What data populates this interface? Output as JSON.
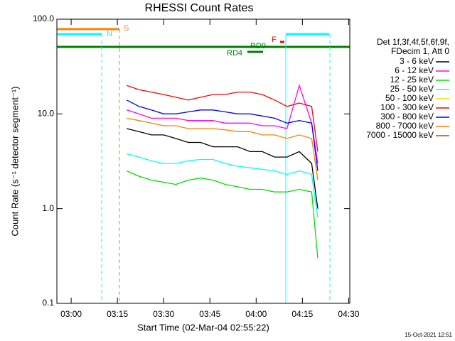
{
  "chart_data": {
    "type": "line",
    "title": "RHESSI Count Rates",
    "x_label": "Start Time (02-Mar-04 02:55:22)",
    "y_label": "Count Rate (s⁻¹ detector segment⁻¹)",
    "log_y": true,
    "xlim": [
      "02:55:22",
      "04:30:22"
    ],
    "xticks": [
      "03:00",
      "03:15",
      "03:30",
      "03:45",
      "04:00",
      "04:15",
      "04:30"
    ],
    "ylim": [
      0.1,
      100
    ],
    "yticks": [
      {
        "value": 100,
        "label": "100.0"
      },
      {
        "value": 10,
        "label": "10.0"
      },
      {
        "value": 1,
        "label": "1.0"
      },
      {
        "value": 0.1,
        "label": "0.1"
      }
    ],
    "x": [
      "03:18",
      "03:22",
      "03:26",
      "03:30",
      "03:34",
      "03:38",
      "03:42",
      "03:46",
      "03:50",
      "03:54",
      "03:58",
      "04:02",
      "04:06",
      "04:10",
      "04:14",
      "04:18",
      "04:20"
    ],
    "legend_header": [
      "Det 1f,3f,4f,5f,6f,9f,",
      "FDecim 1, Att 0"
    ],
    "series": [
      {
        "name": "3 - 6 keV",
        "color": "#000000",
        "values": [
          7,
          6.5,
          6,
          6,
          5.5,
          5,
          5,
          4.5,
          4.5,
          4.5,
          4,
          4,
          3.5,
          3.5,
          4,
          3,
          1
        ]
      },
      {
        "name": "6 - 12 keV",
        "color": "#ff00ff",
        "values": [
          11,
          10,
          9,
          9,
          9,
          8.5,
          8.5,
          8.5,
          8,
          8,
          8,
          7.5,
          7.5,
          7,
          20,
          8,
          3
        ]
      },
      {
        "name": "12 - 25 keV",
        "color": "#00e000",
        "values": [
          2.5,
          2.2,
          2,
          1.9,
          1.8,
          2,
          2.1,
          2,
          1.8,
          1.7,
          1.6,
          1.6,
          1.5,
          1.5,
          1.6,
          1.5,
          0.3
        ]
      },
      {
        "name": "25 - 50 keV",
        "color": "#00ffff",
        "values": [
          3.8,
          3.5,
          3.2,
          3,
          3,
          3.2,
          3.3,
          3.3,
          3,
          2.8,
          2.7,
          2.6,
          2.5,
          2.3,
          2.5,
          2.3,
          0.8
        ]
      },
      {
        "name": "50 - 100 keV",
        "color": "#e0e000",
        "values": [
          null,
          null,
          null,
          null,
          null,
          null,
          null,
          null,
          null,
          null,
          null,
          null,
          null,
          null,
          null,
          null,
          null
        ]
      },
      {
        "name": "100 - 300 keV",
        "color": "#ff0000",
        "values": [
          20,
          18,
          17,
          16,
          15,
          14,
          15,
          16,
          16,
          17,
          17,
          16,
          14,
          12,
          13,
          12,
          4
        ]
      },
      {
        "name": "300 - 800 keV",
        "color": "#0000ff",
        "values": [
          14,
          12,
          11,
          10,
          10,
          10.5,
          11,
          11,
          10.5,
          10,
          10,
          9.5,
          9,
          8,
          8.5,
          8,
          2.5
        ]
      },
      {
        "name": "800 - 7000 keV",
        "color": "#ff8000",
        "values": [
          9,
          8.5,
          8,
          7.5,
          7.5,
          7,
          7,
          7,
          6.8,
          6.5,
          6.5,
          6,
          6,
          5.5,
          6,
          5.5,
          2
        ]
      },
      {
        "name": "7000 - 15000 keV",
        "color": "#a0522d",
        "values": [
          null,
          null,
          null,
          null,
          null,
          null,
          null,
          null,
          null,
          null,
          null,
          null,
          null,
          null,
          null,
          null,
          null
        ]
      }
    ],
    "annotations": [
      "S",
      "N",
      "RD0",
      "RD4",
      "F"
    ],
    "footer": "15-Oct-2021 12:51"
  }
}
